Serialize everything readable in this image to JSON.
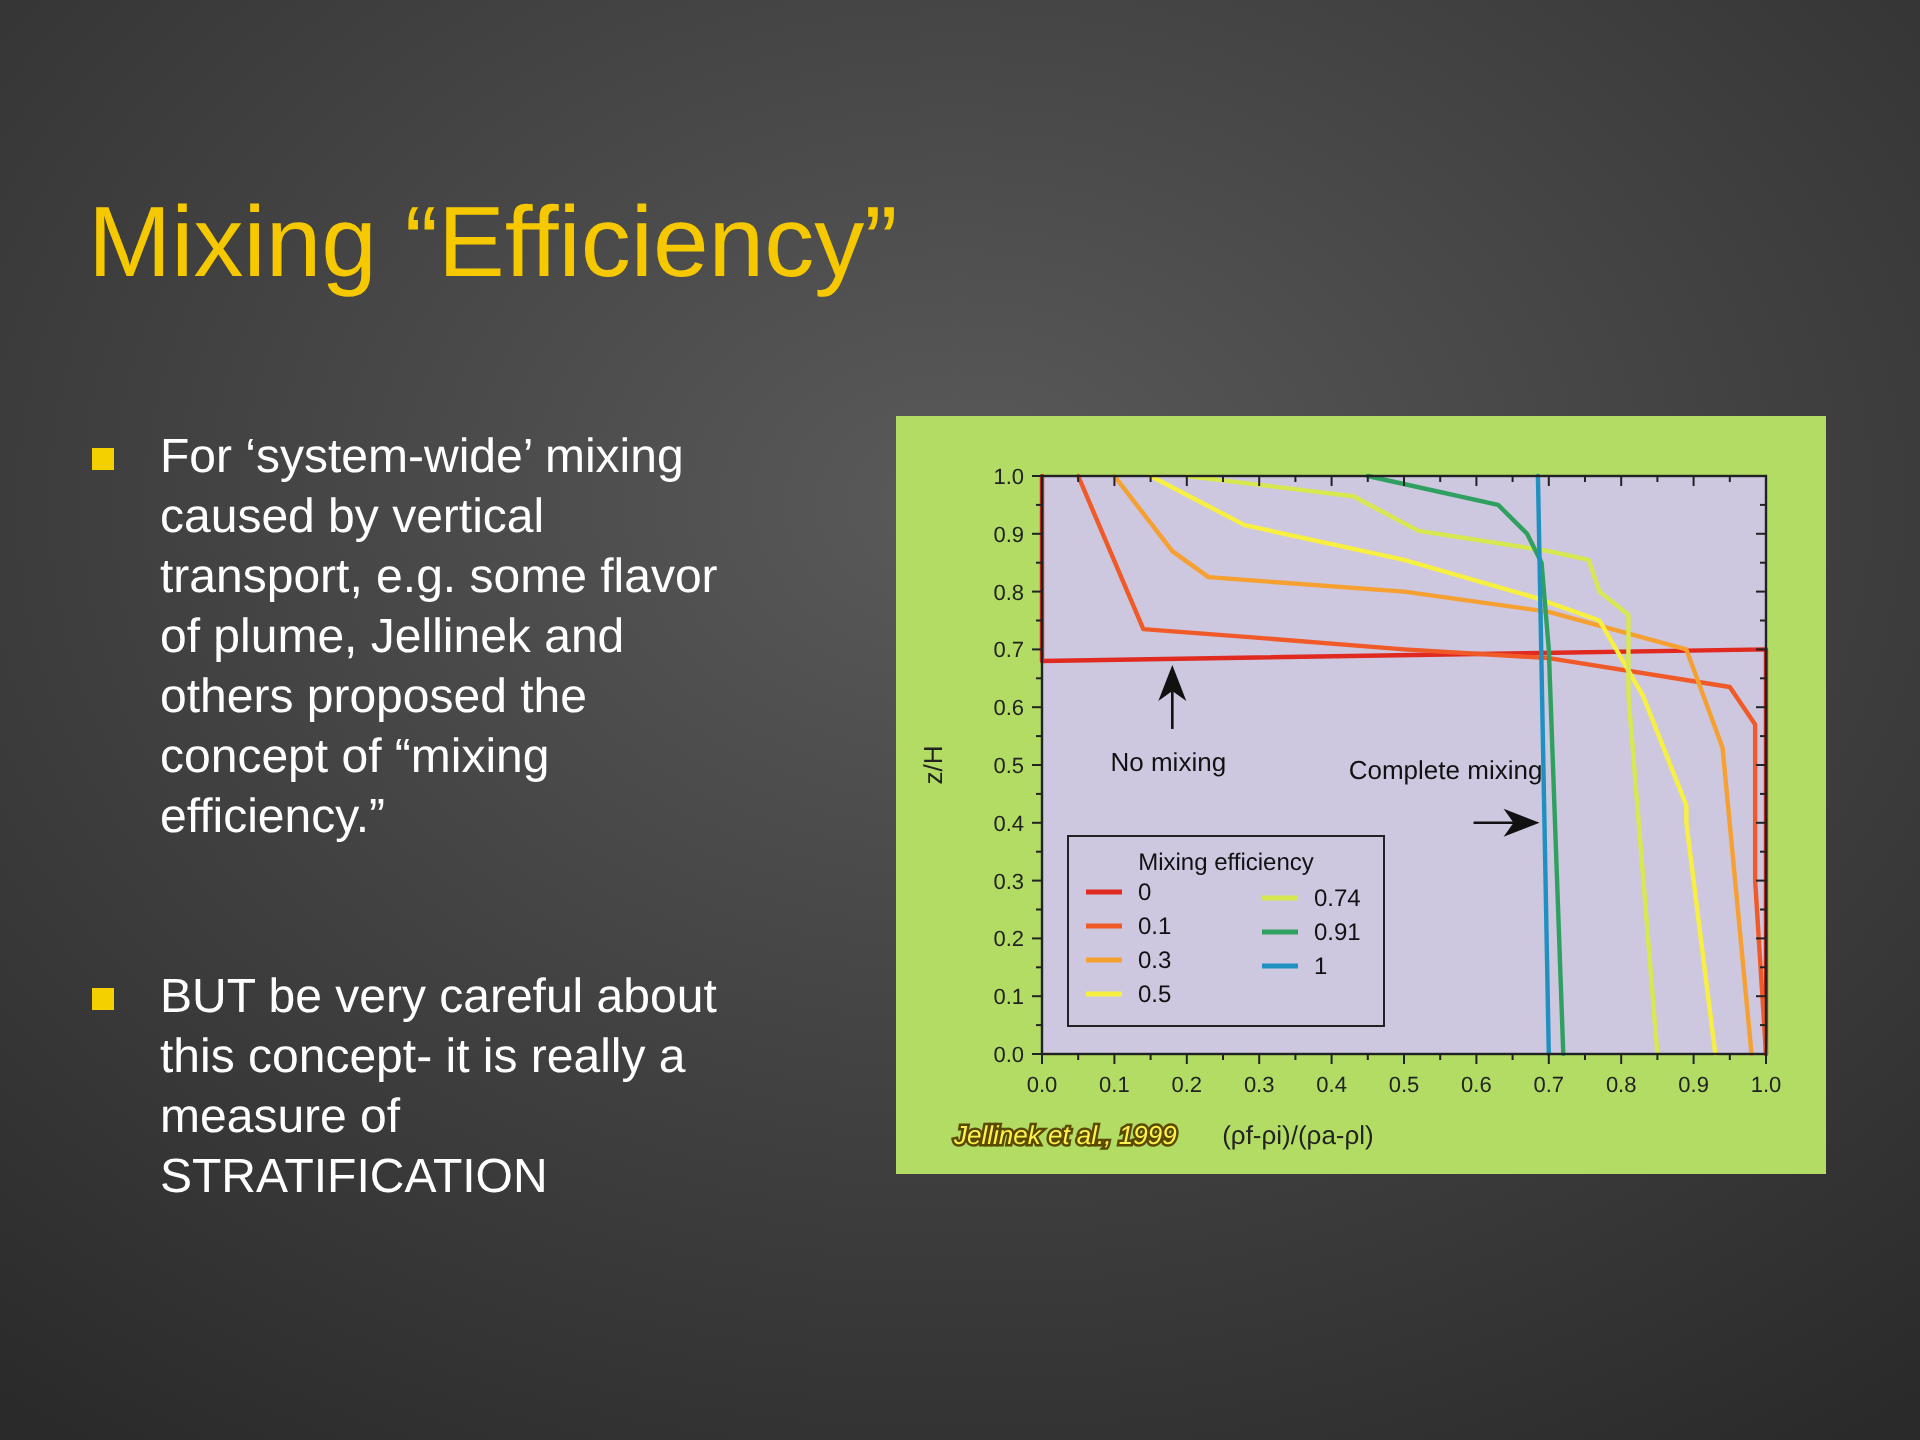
{
  "chart_data": {
    "type": "line",
    "title": "Mixing “Efficiency”",
    "xlabel": "(ρf-ρi)/(ρa-ρl)",
    "ylabel": "z/H",
    "legend_title": "Mixing efficiency",
    "legend": "bottom left",
    "xlim": [
      0,
      1
    ],
    "ylim": [
      0,
      1
    ],
    "xticks": [
      {
        "value": 0,
        "label": "0.0"
      },
      0.1,
      0.2,
      0.3,
      0.4,
      0.5,
      0.6,
      0.7,
      0.8,
      0.9,
      {
        "value": 1,
        "label": "1.0"
      }
    ],
    "yticks": [
      {
        "value": 0,
        "label": "0.0"
      },
      0.1,
      0.2,
      0.3,
      0.4,
      0.5,
      0.6,
      0.7,
      0.8,
      0.9,
      {
        "value": 1,
        "label": "1.0"
      }
    ],
    "grid": false,
    "marker": "none",
    "line_style": "solid",
    "series": [
      {
        "name": "0",
        "color": "#e02a20",
        "x": [
          0,
          0,
          1.0,
          1.0
        ],
        "values": [
          1.0,
          0.68,
          0.7,
          0.0
        ]
      },
      {
        "name": "0.1",
        "color": "#f05a28",
        "x": [
          0.05,
          0.14,
          0.3,
          0.5,
          0.7,
          0.95,
          0.985,
          0.985,
          1.0
        ],
        "values": [
          1.0,
          0.735,
          0.72,
          0.7,
          0.685,
          0.635,
          0.57,
          0.3,
          0.0
        ]
      },
      {
        "name": "0.3",
        "color": "#f5a030",
        "x": [
          0.1,
          0.18,
          0.23,
          0.5,
          0.7,
          0.89,
          0.94,
          0.98
        ],
        "values": [
          1.0,
          0.87,
          0.825,
          0.8,
          0.765,
          0.7,
          0.53,
          0.0
        ]
      },
      {
        "name": "0.5",
        "color": "#f8f040",
        "x": [
          0.15,
          0.28,
          0.5,
          0.68,
          0.77,
          0.83,
          0.89,
          0.89,
          0.93
        ],
        "values": [
          1.0,
          0.915,
          0.855,
          0.79,
          0.75,
          0.62,
          0.43,
          0.4,
          0.0
        ]
      },
      {
        "name": "0.74",
        "color": "#d8e850",
        "x": [
          0.2,
          0.43,
          0.52,
          0.7,
          0.755,
          0.77,
          0.81,
          0.81,
          0.85
        ],
        "values": [
          1.0,
          0.965,
          0.905,
          0.87,
          0.855,
          0.8,
          0.76,
          0.62,
          0.0
        ]
      },
      {
        "name": "0.91",
        "color": "#30a060",
        "x": [
          0.45,
          0.63,
          0.67,
          0.69,
          0.7,
          0.72
        ],
        "values": [
          1.0,
          0.95,
          0.9,
          0.85,
          0.7,
          0.0
        ]
      },
      {
        "name": "1",
        "color": "#2090c0",
        "x": [
          0.685,
          0.7
        ],
        "values": [
          1.0,
          0.0
        ]
      }
    ],
    "annotations": [
      "For ‘system-wide’ mixing caused by vertical transport, e.g. some flavor of plume, Jellinek and others proposed the concept of “mixing efficiency.”",
      "BUT be very careful about this concept- it is really a measure of STRATIFICATION",
      {
        "text": "No mixing",
        "x": 0.18,
        "y": 0.68
      },
      {
        "text": "Complete mixing",
        "x": 0.69,
        "y": 0.4
      },
      "Jellinek et al., 1999"
    ]
  }
}
